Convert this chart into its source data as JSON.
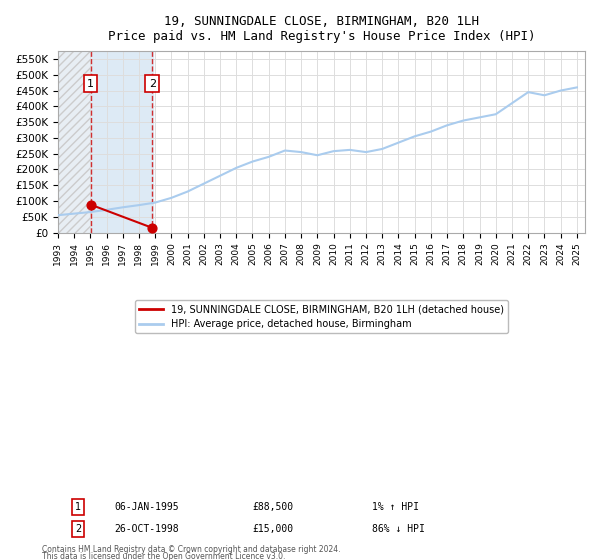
{
  "title": "19, SUNNINGDALE CLOSE, BIRMINGHAM, B20 1LH",
  "subtitle": "Price paid vs. HM Land Registry's House Price Index (HPI)",
  "legend_line1": "19, SUNNINGDALE CLOSE, BIRMINGHAM, B20 1LH (detached house)",
  "legend_line2": "HPI: Average price, detached house, Birmingham",
  "footer1": "Contains HM Land Registry data © Crown copyright and database right 2024.",
  "footer2": "This data is licensed under the Open Government Licence v3.0.",
  "table": [
    {
      "num": "1",
      "date": "06-JAN-1995",
      "price": "£88,500",
      "hpi": "1% ↑ HPI"
    },
    {
      "num": "2",
      "date": "26-OCT-1998",
      "price": "£15,000",
      "hpi": "86% ↓ HPI"
    }
  ],
  "sales": [
    {
      "date_num": 1995.02,
      "price": 88500,
      "label": "1"
    },
    {
      "date_num": 1998.82,
      "price": 15000,
      "label": "2"
    }
  ],
  "hpi_x": [
    1993,
    1994,
    1995,
    1996,
    1997,
    1998,
    1999,
    2000,
    2001,
    2002,
    2003,
    2004,
    2005,
    2006,
    2007,
    2008,
    2009,
    2010,
    2011,
    2012,
    2013,
    2014,
    2015,
    2016,
    2017,
    2018,
    2019,
    2020,
    2021,
    2022,
    2023,
    2024,
    2025
  ],
  "hpi_y": [
    55000,
    60000,
    65000,
    72000,
    80000,
    87000,
    95000,
    110000,
    130000,
    155000,
    180000,
    205000,
    225000,
    240000,
    260000,
    255000,
    245000,
    258000,
    262000,
    255000,
    265000,
    285000,
    305000,
    320000,
    340000,
    355000,
    365000,
    375000,
    410000,
    445000,
    435000,
    450000,
    460000
  ],
  "ylim": [
    0,
    575000
  ],
  "yticks": [
    0,
    50000,
    100000,
    150000,
    200000,
    250000,
    300000,
    350000,
    400000,
    450000,
    500000,
    550000
  ],
  "ytick_labels": [
    "£0",
    "£50K",
    "£100K",
    "£150K",
    "£200K",
    "£250K",
    "£300K",
    "£350K",
    "£400K",
    "£450K",
    "£500K",
    "£550K"
  ],
  "xlim_start": 1993,
  "xlim_end": 2025.5,
  "xticks": [
    1993,
    1994,
    1995,
    1996,
    1997,
    1998,
    1999,
    2000,
    2001,
    2002,
    2003,
    2004,
    2005,
    2006,
    2007,
    2008,
    2009,
    2010,
    2011,
    2012,
    2013,
    2014,
    2015,
    2016,
    2017,
    2018,
    2019,
    2020,
    2021,
    2022,
    2023,
    2024,
    2025
  ],
  "sale_color": "#cc0000",
  "hpi_color": "#aaccee",
  "vline_color": "#cc0000",
  "hatch_color": "#ccddee",
  "label_box_color": "#ffffff",
  "label_box_edge": "#cc0000",
  "grid_color": "#dddddd",
  "bg_hatch_color": "#e8eef4"
}
